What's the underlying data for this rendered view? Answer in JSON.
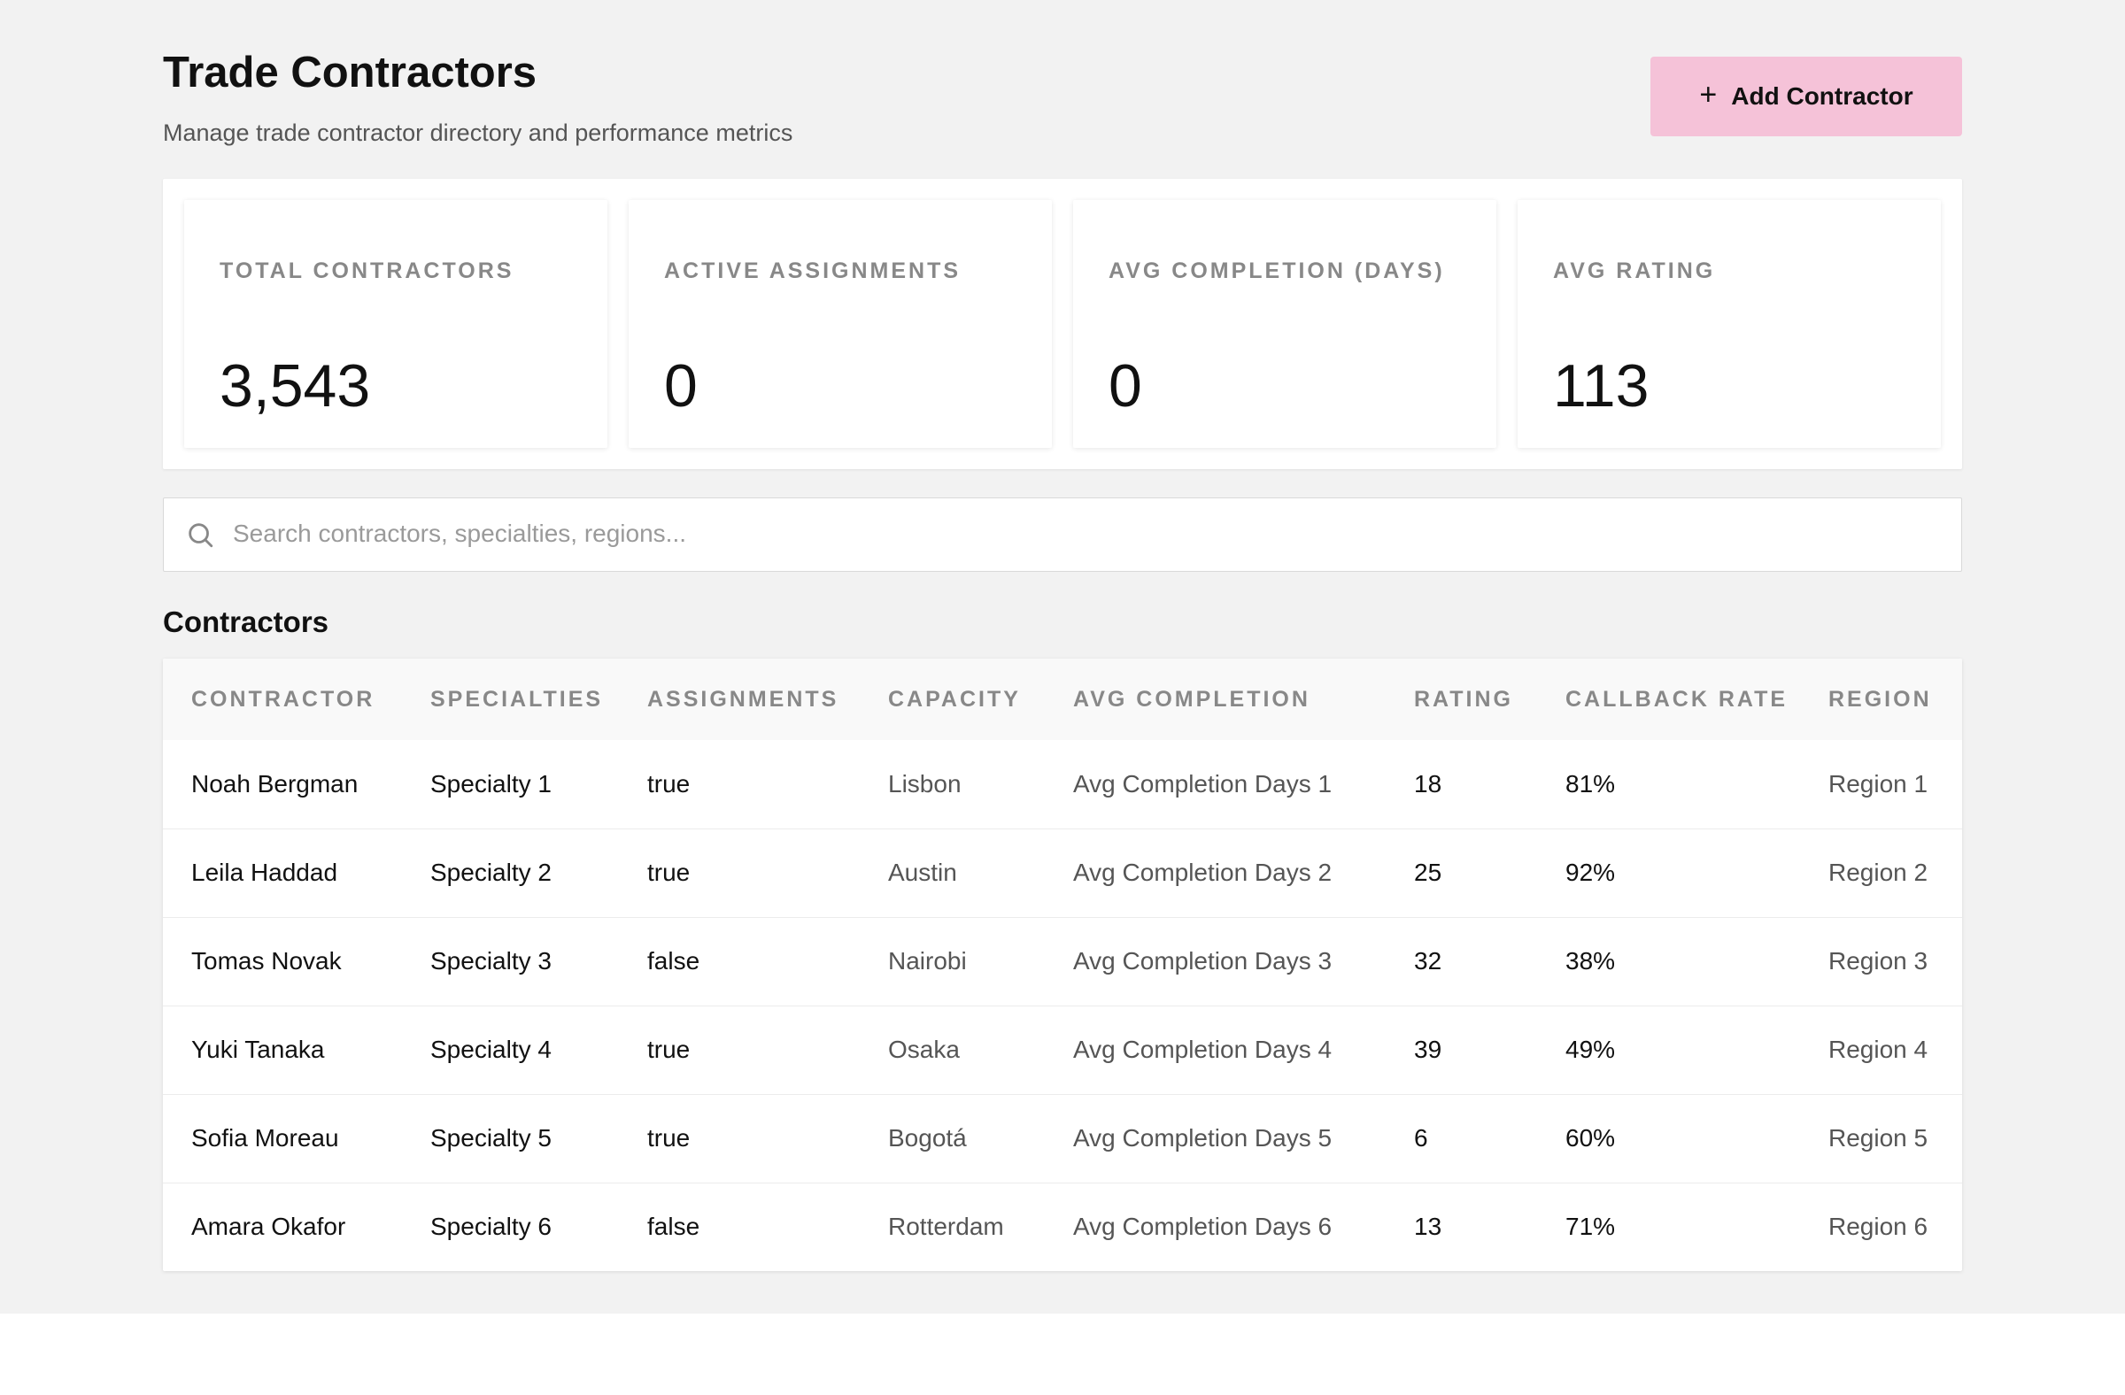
{
  "header": {
    "title": "Trade Contractors",
    "subtitle": "Manage trade contractor directory and performance metrics",
    "add_button_label": "Add Contractor",
    "add_button_icon": "plus-icon"
  },
  "stats": [
    {
      "label": "TOTAL CONTRACTORS",
      "value": "3,543"
    },
    {
      "label": "ACTIVE ASSIGNMENTS",
      "value": "0"
    },
    {
      "label": "AVG COMPLETION (DAYS)",
      "value": "0"
    },
    {
      "label": "AVG RATING",
      "value": "113"
    }
  ],
  "search": {
    "placeholder": "Search contractors, specialties, regions...",
    "icon": "search-icon"
  },
  "contractors": {
    "section_title": "Contractors",
    "columns": [
      "CONTRACTOR",
      "SPECIALTIES",
      "ASSIGNMENTS",
      "CAPACITY",
      "AVG COMPLETION",
      "RATING",
      "CALLBACK RATE",
      "REGION"
    ],
    "rows": [
      [
        "Noah Bergman",
        "Specialty 1",
        "true",
        "Lisbon",
        "Avg Completion Days 1",
        "18",
        "81%",
        "Region 1"
      ],
      [
        "Leila Haddad",
        "Specialty 2",
        "true",
        "Austin",
        "Avg Completion Days 2",
        "25",
        "92%",
        "Region 2"
      ],
      [
        "Tomas Novak",
        "Specialty 3",
        "false",
        "Nairobi",
        "Avg Completion Days 3",
        "32",
        "38%",
        "Region 3"
      ],
      [
        "Yuki Tanaka",
        "Specialty 4",
        "true",
        "Osaka",
        "Avg Completion Days 4",
        "39",
        "49%",
        "Region 4"
      ],
      [
        "Sofia Moreau",
        "Specialty 5",
        "true",
        "Bogotá",
        "Avg Completion Days 5",
        "6",
        "60%",
        "Region 5"
      ],
      [
        "Amara Okafor",
        "Specialty 6",
        "false",
        "Rotterdam",
        "Avg Completion Days 6",
        "13",
        "71%",
        "Region 6"
      ]
    ]
  },
  "colors": {
    "page_background": "#f2f2f2",
    "accent_button": "#f5c2d8",
    "muted_text": "#888888"
  }
}
